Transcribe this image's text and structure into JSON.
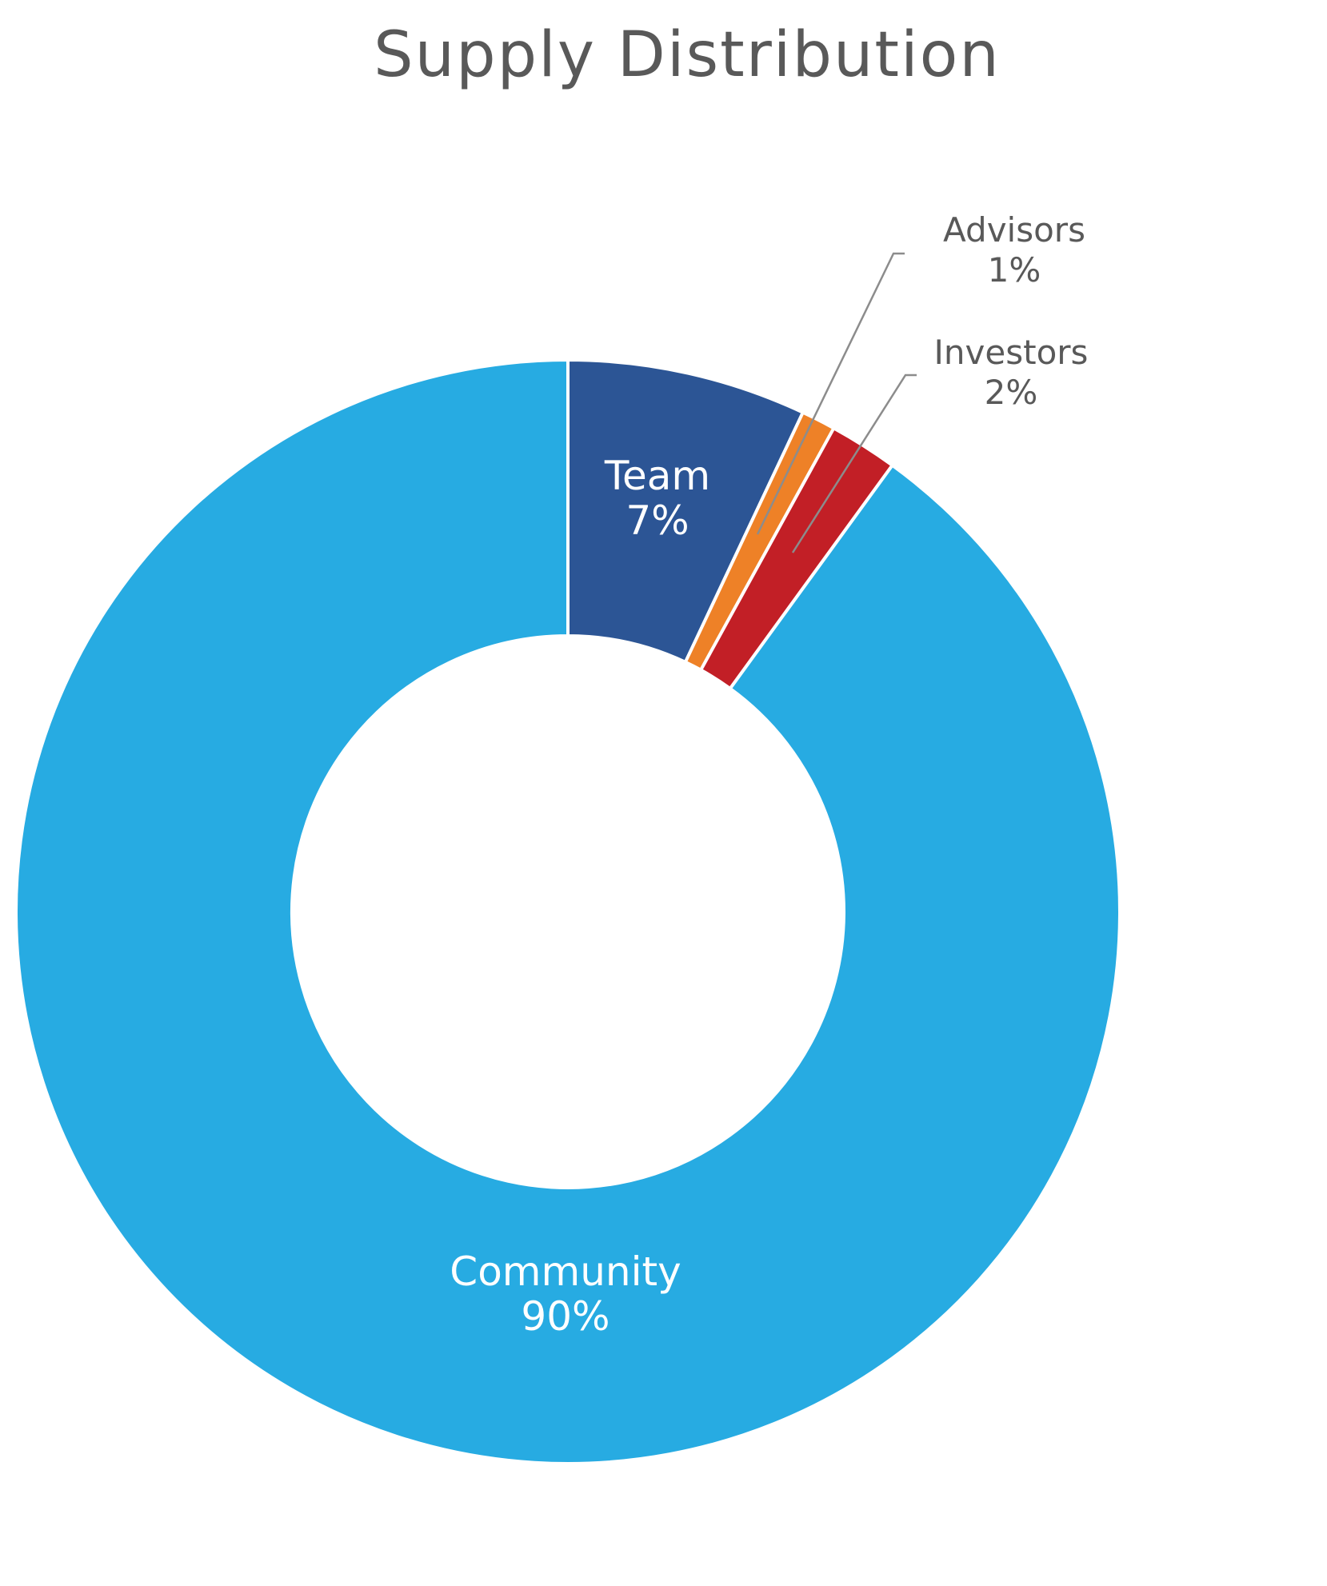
{
  "chart_data": {
    "type": "pie",
    "variant": "donut",
    "title": "Supply Distribution",
    "slices": [
      {
        "label": "Team",
        "value": 7,
        "value_label": "7%",
        "color": "#2c5595",
        "label_color": "#ffffff",
        "label_placement": "inside"
      },
      {
        "label": "Advisors",
        "value": 1,
        "value_label": "1%",
        "color": "#ee8127",
        "label_color": "#595959",
        "label_placement": "outside-leader"
      },
      {
        "label": "Investors",
        "value": 2,
        "value_label": "2%",
        "color": "#c21f26",
        "label_color": "#595959",
        "label_placement": "outside-leader"
      },
      {
        "label": "Community",
        "value": 90,
        "value_label": "90%",
        "color": "#27abe2",
        "label_color": "#ffffff",
        "label_placement": "inside"
      }
    ],
    "start_angle": "12 o'clock",
    "direction": "clockwise",
    "legend": "none"
  }
}
